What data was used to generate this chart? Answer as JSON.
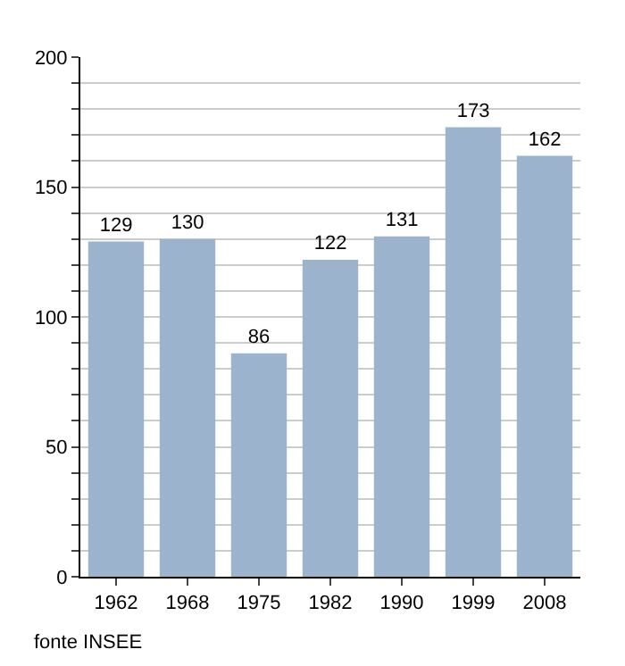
{
  "chart_data": {
    "type": "bar",
    "categories": [
      "1962",
      "1968",
      "1975",
      "1982",
      "1990",
      "1999",
      "2008"
    ],
    "values": [
      129,
      130,
      86,
      122,
      131,
      173,
      162
    ],
    "color": "#9bb3cc",
    "data_labels": true,
    "ylim": [
      0,
      200
    ],
    "yticks": [
      0,
      {
        "value": 10,
        "label": null
      },
      {
        "value": 20,
        "label": null
      },
      {
        "value": 30,
        "label": null
      },
      {
        "value": 40,
        "label": null
      },
      50,
      {
        "value": 60,
        "label": null
      },
      {
        "value": 70,
        "label": null
      },
      {
        "value": 80,
        "label": null
      },
      {
        "value": 90,
        "label": null
      },
      100,
      {
        "value": 110,
        "label": null
      },
      {
        "value": 120,
        "label": null
      },
      {
        "value": 130,
        "label": null
      },
      {
        "value": 140,
        "label": null
      },
      150,
      {
        "value": 160,
        "label": null
      },
      {
        "value": 170,
        "label": null
      },
      {
        "value": 180,
        "label": null
      },
      {
        "value": 190,
        "label": null
      },
      200
    ],
    "grid": "y",
    "annotations": [
      "fonte INSEE"
    ]
  }
}
